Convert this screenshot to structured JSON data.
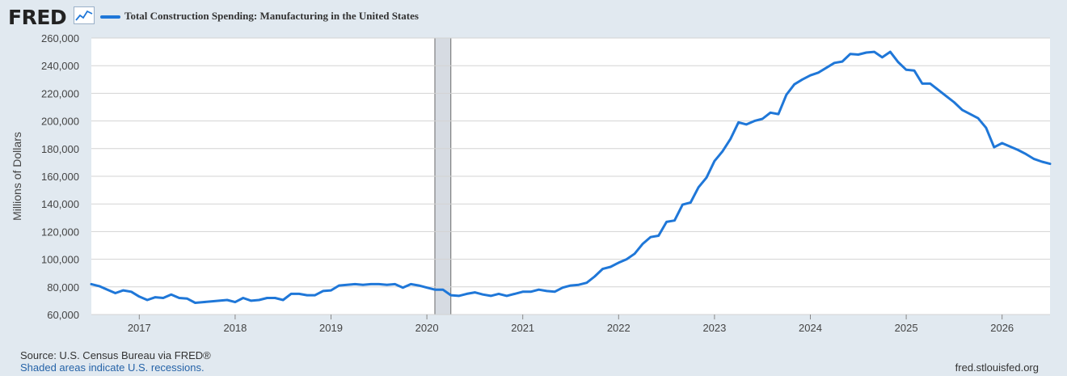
{
  "header": {
    "logo_text": "FRED",
    "logo_icon": "line-chart-icon",
    "series_legend": "Total Construction Spending: Manufacturing in the United States"
  },
  "colors": {
    "series": "#1f77d8",
    "recession": "#d6dbe2",
    "page_background": "#e1e9f0",
    "plot_background": "#ffffff",
    "grid": "#d3d3d3",
    "note_link": "#2563a8"
  },
  "footer": {
    "source": "Source: U.S. Census Bureau via FRED®",
    "note": "Shaded areas indicate U.S. recessions.",
    "url": "fred.stlouisfed.org"
  },
  "chart_data": {
    "type": "line",
    "title": "Total Construction Spending: Manufacturing in the United States",
    "ylabel": "Millions of Dollars",
    "xlabel": "",
    "ylim": [
      60000,
      260000
    ],
    "xlim": [
      "2016-07",
      "2026-07"
    ],
    "grid": true,
    "legend_placement": "top-left",
    "y_ticks": [
      60000,
      80000,
      100000,
      120000,
      140000,
      160000,
      180000,
      200000,
      220000,
      240000,
      260000
    ],
    "y_tick_labels": [
      "60,000",
      "80,000",
      "100,000",
      "120,000",
      "140,000",
      "160,000",
      "180,000",
      "200,000",
      "220,000",
      "240,000",
      "260,000"
    ],
    "x_ticks": [
      "2017-01",
      "2018-01",
      "2019-01",
      "2020-01",
      "2021-01",
      "2022-01",
      "2023-01",
      "2024-01",
      "2025-01",
      "2026-01"
    ],
    "x_tick_labels": [
      "2017",
      "2018",
      "2019",
      "2020",
      "2021",
      "2022",
      "2023",
      "2024",
      "2025",
      "2026"
    ],
    "recessions": [
      {
        "start": "2020-02",
        "end": "2020-04"
      }
    ],
    "series": [
      {
        "name": "Total Construction Spending: Manufacturing in the United States",
        "x": [
          "2016-07",
          "2016-08",
          "2016-09",
          "2016-10",
          "2016-11",
          "2016-12",
          "2017-01",
          "2017-02",
          "2017-03",
          "2017-04",
          "2017-05",
          "2017-06",
          "2017-07",
          "2017-08",
          "2017-09",
          "2017-10",
          "2017-11",
          "2017-12",
          "2018-01",
          "2018-02",
          "2018-03",
          "2018-04",
          "2018-05",
          "2018-06",
          "2018-07",
          "2018-08",
          "2018-09",
          "2018-10",
          "2018-11",
          "2018-12",
          "2019-01",
          "2019-02",
          "2019-03",
          "2019-04",
          "2019-05",
          "2019-06",
          "2019-07",
          "2019-08",
          "2019-09",
          "2019-10",
          "2019-11",
          "2019-12",
          "2020-01",
          "2020-02",
          "2020-03",
          "2020-04",
          "2020-05",
          "2020-06",
          "2020-07",
          "2020-08",
          "2020-09",
          "2020-10",
          "2020-11",
          "2020-12",
          "2021-01",
          "2021-02",
          "2021-03",
          "2021-04",
          "2021-05",
          "2021-06",
          "2021-07",
          "2021-08",
          "2021-09",
          "2021-10",
          "2021-11",
          "2021-12",
          "2022-01",
          "2022-02",
          "2022-03",
          "2022-04",
          "2022-05",
          "2022-06",
          "2022-07",
          "2022-08",
          "2022-09",
          "2022-10",
          "2022-11",
          "2022-12",
          "2023-01",
          "2023-02",
          "2023-03",
          "2023-04",
          "2023-05",
          "2023-06",
          "2023-07",
          "2023-08",
          "2023-09",
          "2023-10",
          "2023-11",
          "2023-12",
          "2024-01",
          "2024-02",
          "2024-03",
          "2024-04",
          "2024-05",
          "2024-06",
          "2024-07",
          "2024-08",
          "2024-09",
          "2024-10",
          "2024-11",
          "2024-12",
          "2025-01",
          "2025-02",
          "2025-03",
          "2025-04",
          "2025-05",
          "2025-06",
          "2025-07",
          "2025-08",
          "2025-09",
          "2025-10",
          "2025-11",
          "2025-12",
          "2026-01",
          "2026-02",
          "2026-03",
          "2026-04",
          "2026-05",
          "2026-06",
          "2026-07"
        ],
        "values": [
          82000,
          80500,
          78000,
          75500,
          77500,
          76500,
          73000,
          70500,
          72500,
          72000,
          74500,
          72000,
          71500,
          68500,
          69000,
          69500,
          70000,
          70500,
          69000,
          72000,
          70000,
          70500,
          72000,
          72000,
          70500,
          75000,
          75000,
          74000,
          74000,
          77000,
          77500,
          81000,
          81500,
          82000,
          81500,
          82000,
          82000,
          81500,
          82000,
          79500,
          82000,
          81000,
          79500,
          78000,
          78000,
          74000,
          73500,
          75000,
          76000,
          74500,
          73500,
          75000,
          73500,
          75000,
          76500,
          76500,
          78000,
          77000,
          76500,
          79500,
          81000,
          81500,
          83000,
          87500,
          93000,
          94500,
          97500,
          100000,
          104000,
          111000,
          116000,
          117000,
          127000,
          128000,
          139500,
          141000,
          152000,
          159000,
          171000,
          178000,
          187000,
          199000,
          197500,
          200000,
          201500,
          206000,
          205000,
          219000,
          226500,
          230000,
          233000,
          235000,
          238500,
          242000,
          243000,
          248500,
          248000,
          249500,
          250000,
          246000,
          250000,
          242500,
          237000,
          236500,
          227000,
          227000,
          222500,
          218000,
          213500,
          208000,
          205000,
          202000,
          195000,
          181000,
          184000,
          181500,
          179000,
          176000,
          172500,
          170500,
          169000
        ]
      }
    ]
  }
}
